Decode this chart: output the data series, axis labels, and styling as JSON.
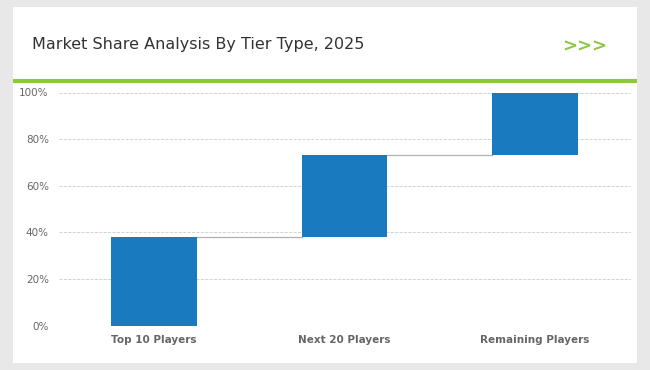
{
  "title": "Market Share Analysis By Tier Type, 2025",
  "categories": [
    "Top 10 Players",
    "Next 20 Players",
    "Remaining Players"
  ],
  "bar_bottoms": [
    0,
    38,
    73
  ],
  "bar_tops": [
    38,
    73,
    100
  ],
  "bar_color": "#1a7abf",
  "outer_bg_color": "#e8e8e8",
  "inner_bg_color": "#ffffff",
  "plot_bg_color": "#ffffff",
  "connector_line_color": "#b0b0b0",
  "green_line_color": "#8dc63f",
  "title_color": "#333333",
  "tick_label_color": "#666666",
  "grid_color": "#cccccc",
  "ylim": [
    0,
    100
  ],
  "yticks": [
    0,
    20,
    40,
    60,
    80,
    100
  ],
  "bar_width": 0.45,
  "title_fontsize": 11.5,
  "tick_fontsize": 7.5,
  "chevron_color": "#8dc63f",
  "chevron_text": ">>>"
}
